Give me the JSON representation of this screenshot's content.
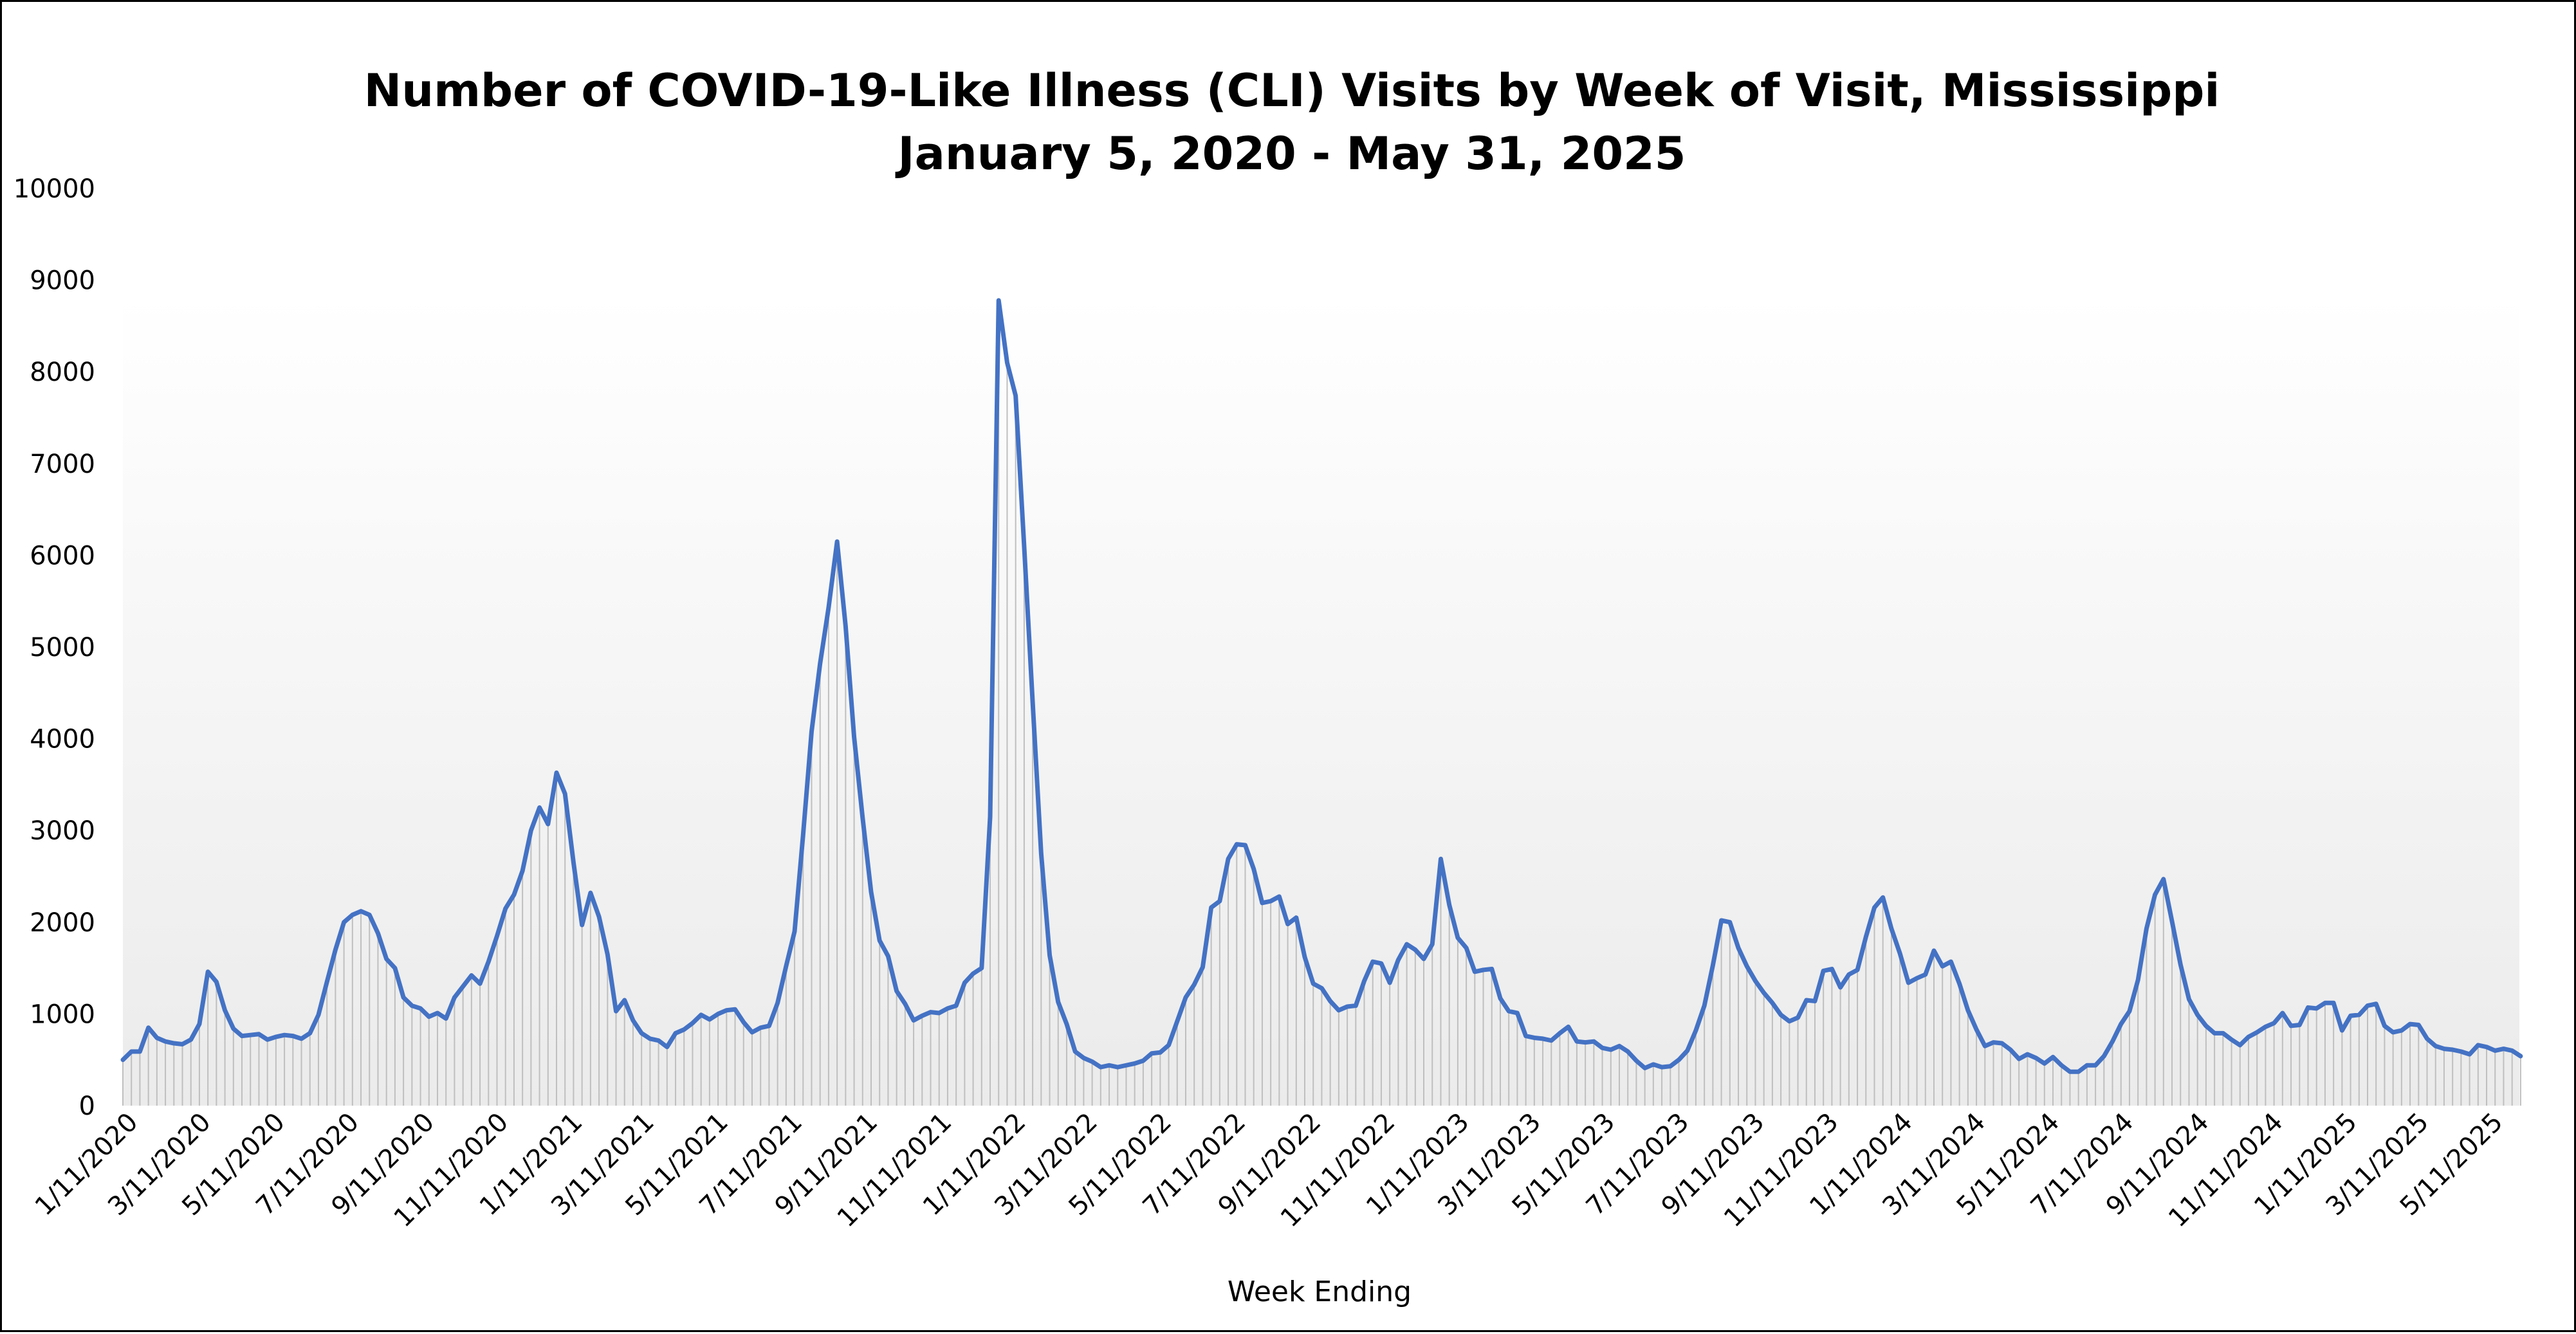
{
  "chart_data": {
    "type": "line",
    "title": "Number of COVID-19-Like Illness (CLI) Visits by Week of Visit, Mississippi",
    "subtitle": "January 5, 2020 - May 31, 2025",
    "xlabel": "Week Ending",
    "ylabel": "",
    "ylim": [
      0,
      10000
    ],
    "y_ticks": [
      0,
      1000,
      2000,
      3000,
      4000,
      5000,
      6000,
      7000,
      8000,
      9000,
      10000
    ],
    "x_tick_labels": [
      "1/11/2020",
      "3/11/2020",
      "5/11/2020",
      "7/11/2020",
      "9/11/2020",
      "11/11/2020",
      "1/11/2021",
      "3/11/2021",
      "5/11/2021",
      "7/11/2021",
      "9/11/2021",
      "11/11/2021",
      "1/11/2022",
      "3/11/2022",
      "5/11/2022",
      "7/11/2022",
      "9/11/2022",
      "11/11/2022",
      "1/11/2023",
      "3/11/2023",
      "5/11/2023",
      "7/11/2023",
      "9/11/2023",
      "11/11/2023",
      "1/11/2024",
      "3/11/2024",
      "5/11/2024",
      "7/11/2024",
      "9/11/2024",
      "11/11/2024",
      "1/11/2025",
      "3/11/2025",
      "5/11/2025"
    ],
    "x_range": [
      "2020-01-05",
      "2025-05-31"
    ],
    "grid": false,
    "legend": "none",
    "colors": {
      "line": "#4472c4",
      "drop_lines": "#bfbfbf",
      "plot_background_top": "#ffffff",
      "plot_background_bottom": "#ebebeb",
      "frame": "#000000"
    },
    "series": [
      {
        "x_start": "2020-01-05",
        "x_step_days": 7,
        "values": [
          500,
          590,
          590,
          850,
          740,
          700,
          680,
          670,
          720,
          890,
          1460,
          1350,
          1040,
          840,
          760,
          770,
          780,
          720,
          750,
          770,
          760,
          730,
          790,
          990,
          1350,
          1700,
          2000,
          2080,
          2120,
          2080,
          1880,
          1600,
          1500,
          1180,
          1090,
          1060,
          970,
          1010,
          950,
          1180,
          1300,
          1420,
          1330,
          1570,
          1850,
          2150,
          2300,
          2560,
          3000,
          3250,
          3070,
          3630,
          3400,
          2650,
          1970,
          2320,
          2060,
          1650,
          1030,
          1150,
          930,
          790,
          730,
          710,
          640,
          790,
          830,
          900,
          990,
          940,
          1000,
          1040,
          1050,
          910,
          800,
          850,
          870,
          1120,
          1520,
          1900,
          2950,
          4080,
          4820,
          5430,
          6150,
          5230,
          4020,
          3140,
          2330,
          1800,
          1630,
          1250,
          1110,
          930,
          980,
          1020,
          1010,
          1060,
          1090,
          1340,
          1440,
          1500,
          3150,
          8780,
          8100,
          7740,
          6100,
          4400,
          2750,
          1640,
          1130,
          890,
          590,
          520,
          480,
          420,
          440,
          420,
          440,
          460,
          490,
          570,
          580,
          660,
          920,
          1180,
          1320,
          1510,
          2160,
          2230,
          2690,
          2850,
          2840,
          2580,
          2210,
          2230,
          2280,
          1980,
          2050,
          1620,
          1330,
          1280,
          1140,
          1040,
          1080,
          1090,
          1360,
          1570,
          1550,
          1340,
          1590,
          1760,
          1700,
          1600,
          1760,
          2690,
          2190,
          1830,
          1720,
          1460,
          1480,
          1490,
          1170,
          1030,
          1010,
          760,
          740,
          730,
          710,
          790,
          860,
          700,
          690,
          700,
          630,
          610,
          650,
          590,
          490,
          410,
          450,
          420,
          430,
          500,
          600,
          820,
          1090,
          1530,
          2020,
          2000,
          1720,
          1520,
          1360,
          1230,
          1120,
          990,
          920,
          960,
          1150,
          1140,
          1470,
          1490,
          1290,
          1430,
          1480,
          1840,
          2160,
          2270,
          1930,
          1660,
          1340,
          1390,
          1430,
          1690,
          1520,
          1570,
          1330,
          1040,
          830,
          650,
          690,
          680,
          610,
          510,
          560,
          520,
          460,
          530,
          440,
          370,
          370,
          440,
          440,
          540,
          700,
          890,
          1030,
          1370,
          1930,
          2300,
          2470,
          2010,
          1540,
          1160,
          990,
          870,
          790,
          790,
          720,
          660,
          750,
          800,
          860,
          900,
          1010,
          870,
          880,
          1070,
          1060,
          1120,
          1120,
          820,
          980,
          990,
          1090,
          1110,
          870,
          800,
          820,
          890,
          880,
          730,
          650,
          620,
          610,
          590,
          560,
          660,
          640,
          600,
          620,
          600,
          540
        ]
      }
    ]
  }
}
